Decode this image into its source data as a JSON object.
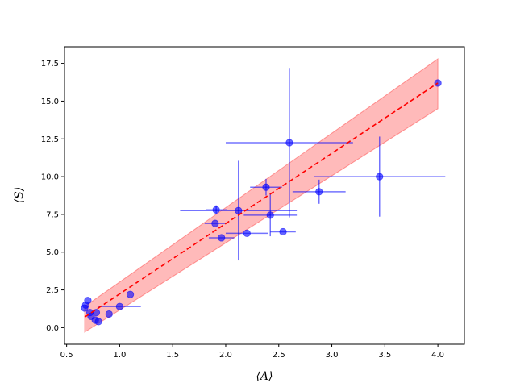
{
  "chart_data": {
    "type": "scatter",
    "xlabel": "⟨A⟩",
    "ylabel": "⟨S⟩",
    "xlim": [
      0.48,
      4.25
    ],
    "ylim": [
      -1.1,
      18.6
    ],
    "x_ticks": [
      0.5,
      1.0,
      1.5,
      2.0,
      2.5,
      3.0,
      3.5,
      4.0
    ],
    "x_tick_labels": [
      "0.5",
      "1.0",
      "1.5",
      "2.0",
      "2.5",
      "3.0",
      "3.5",
      "4.0"
    ],
    "y_ticks": [
      0.0,
      2.5,
      5.0,
      7.5,
      10.0,
      12.5,
      15.0,
      17.5
    ],
    "y_tick_labels": [
      "0.0",
      "2.5",
      "5.0",
      "7.5",
      "10.0",
      "12.5",
      "15.0",
      "17.5"
    ],
    "grid": false,
    "colors": {
      "points": "#0000ff",
      "fit_line": "#ff0000",
      "band": "#ff0000"
    },
    "points": [
      {
        "x": 0.67,
        "y": 1.3,
        "xerr": 0.0,
        "yerr": 0.0
      },
      {
        "x": 0.68,
        "y": 1.5,
        "xerr": 0.0,
        "yerr": 0.0
      },
      {
        "x": 0.7,
        "y": 1.8,
        "xerr": 0.0,
        "yerr": 0.0
      },
      {
        "x": 0.72,
        "y": 1.0,
        "xerr": 0.0,
        "yerr": 0.0
      },
      {
        "x": 0.73,
        "y": 0.75,
        "xerr": 0.0,
        "yerr": 0.0
      },
      {
        "x": 0.77,
        "y": 0.5,
        "xerr": 0.0,
        "yerr": 0.0
      },
      {
        "x": 0.78,
        "y": 1.0,
        "xerr": 0.0,
        "yerr": 0.0
      },
      {
        "x": 0.8,
        "y": 0.4,
        "xerr": 0.0,
        "yerr": 0.0
      },
      {
        "x": 0.9,
        "y": 0.9,
        "xerr": 0.0,
        "yerr": 0.0
      },
      {
        "x": 1.0,
        "y": 1.4,
        "xerr": 0.2,
        "yerr": 0.0
      },
      {
        "x": 1.1,
        "y": 2.2,
        "xerr": 0.0,
        "yerr": 0.0
      },
      {
        "x": 1.9,
        "y": 6.9,
        "xerr": 0.1,
        "yerr": 0.0
      },
      {
        "x": 1.91,
        "y": 7.8,
        "xerr": 0.1,
        "yerr": 0.3
      },
      {
        "x": 1.96,
        "y": 5.95,
        "xerr": 0.12,
        "yerr": 0.0
      },
      {
        "x": 2.12,
        "y": 7.75,
        "xerr": 0.55,
        "yerr": 3.3
      },
      {
        "x": 2.2,
        "y": 6.25,
        "xerr": 0.2,
        "yerr": 0.0
      },
      {
        "x": 2.38,
        "y": 9.3,
        "xerr": 0.15,
        "yerr": 0.55
      },
      {
        "x": 2.42,
        "y": 7.45,
        "xerr": 0.25,
        "yerr": 1.4
      },
      {
        "x": 2.54,
        "y": 6.35,
        "xerr": 0.12,
        "yerr": 0.0
      },
      {
        "x": 2.6,
        "y": 12.25,
        "xerr": 0.6,
        "yerr": 4.95
      },
      {
        "x": 2.88,
        "y": 9.0,
        "xerr": 0.25,
        "yerr": 0.8
      },
      {
        "x": 3.45,
        "y": 10.0,
        "xerr": 0.62,
        "yerr": 2.65
      },
      {
        "x": 4.0,
        "y": 16.2,
        "xerr": 0.0,
        "yerr": 0.0
      }
    ],
    "fit": {
      "x": [
        0.67,
        4.0
      ],
      "y": [
        0.7,
        16.2
      ]
    },
    "band": {
      "x": [
        0.67,
        4.0
      ],
      "lower": [
        -0.3,
        14.5
      ],
      "upper": [
        1.4,
        17.8
      ]
    }
  }
}
